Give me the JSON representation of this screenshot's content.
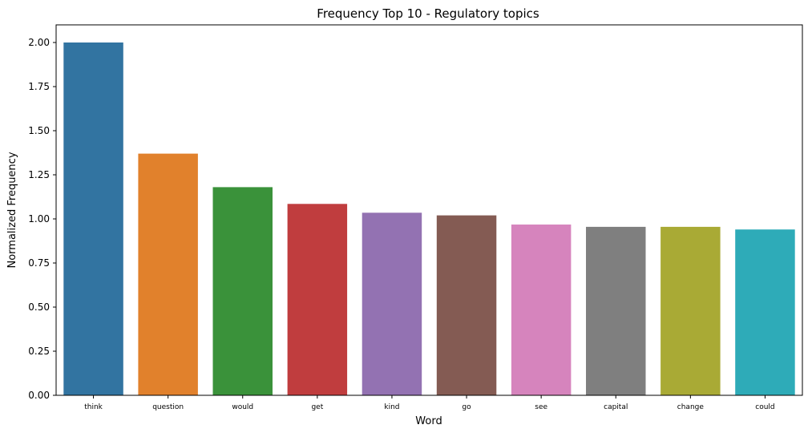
{
  "chart_data": {
    "type": "bar",
    "title": "Frequency Top 10 - Regulatory topics",
    "xlabel": "Word",
    "ylabel": "Normalized Frequency",
    "categories": [
      "think",
      "question",
      "would",
      "get",
      "kind",
      "go",
      "see",
      "capital",
      "change",
      "could"
    ],
    "values": [
      2.0,
      1.37,
      1.18,
      1.085,
      1.035,
      1.02,
      0.968,
      0.955,
      0.955,
      0.94
    ],
    "colors": [
      "#3274a1",
      "#e1812c",
      "#3a923a",
      "#c03d3e",
      "#9372b2",
      "#845b53",
      "#d684bd",
      "#7f7f7f",
      "#a9aa35",
      "#2eabb8"
    ],
    "ylim": [
      0,
      2.1
    ],
    "yticks": [
      "0.00",
      "0.25",
      "0.50",
      "0.75",
      "1.00",
      "1.25",
      "1.50",
      "1.75",
      "2.00"
    ],
    "ytick_values": [
      0,
      0.25,
      0.5,
      0.75,
      1.0,
      1.25,
      1.5,
      1.75,
      2.0
    ],
    "grid": false,
    "legend": "none"
  }
}
